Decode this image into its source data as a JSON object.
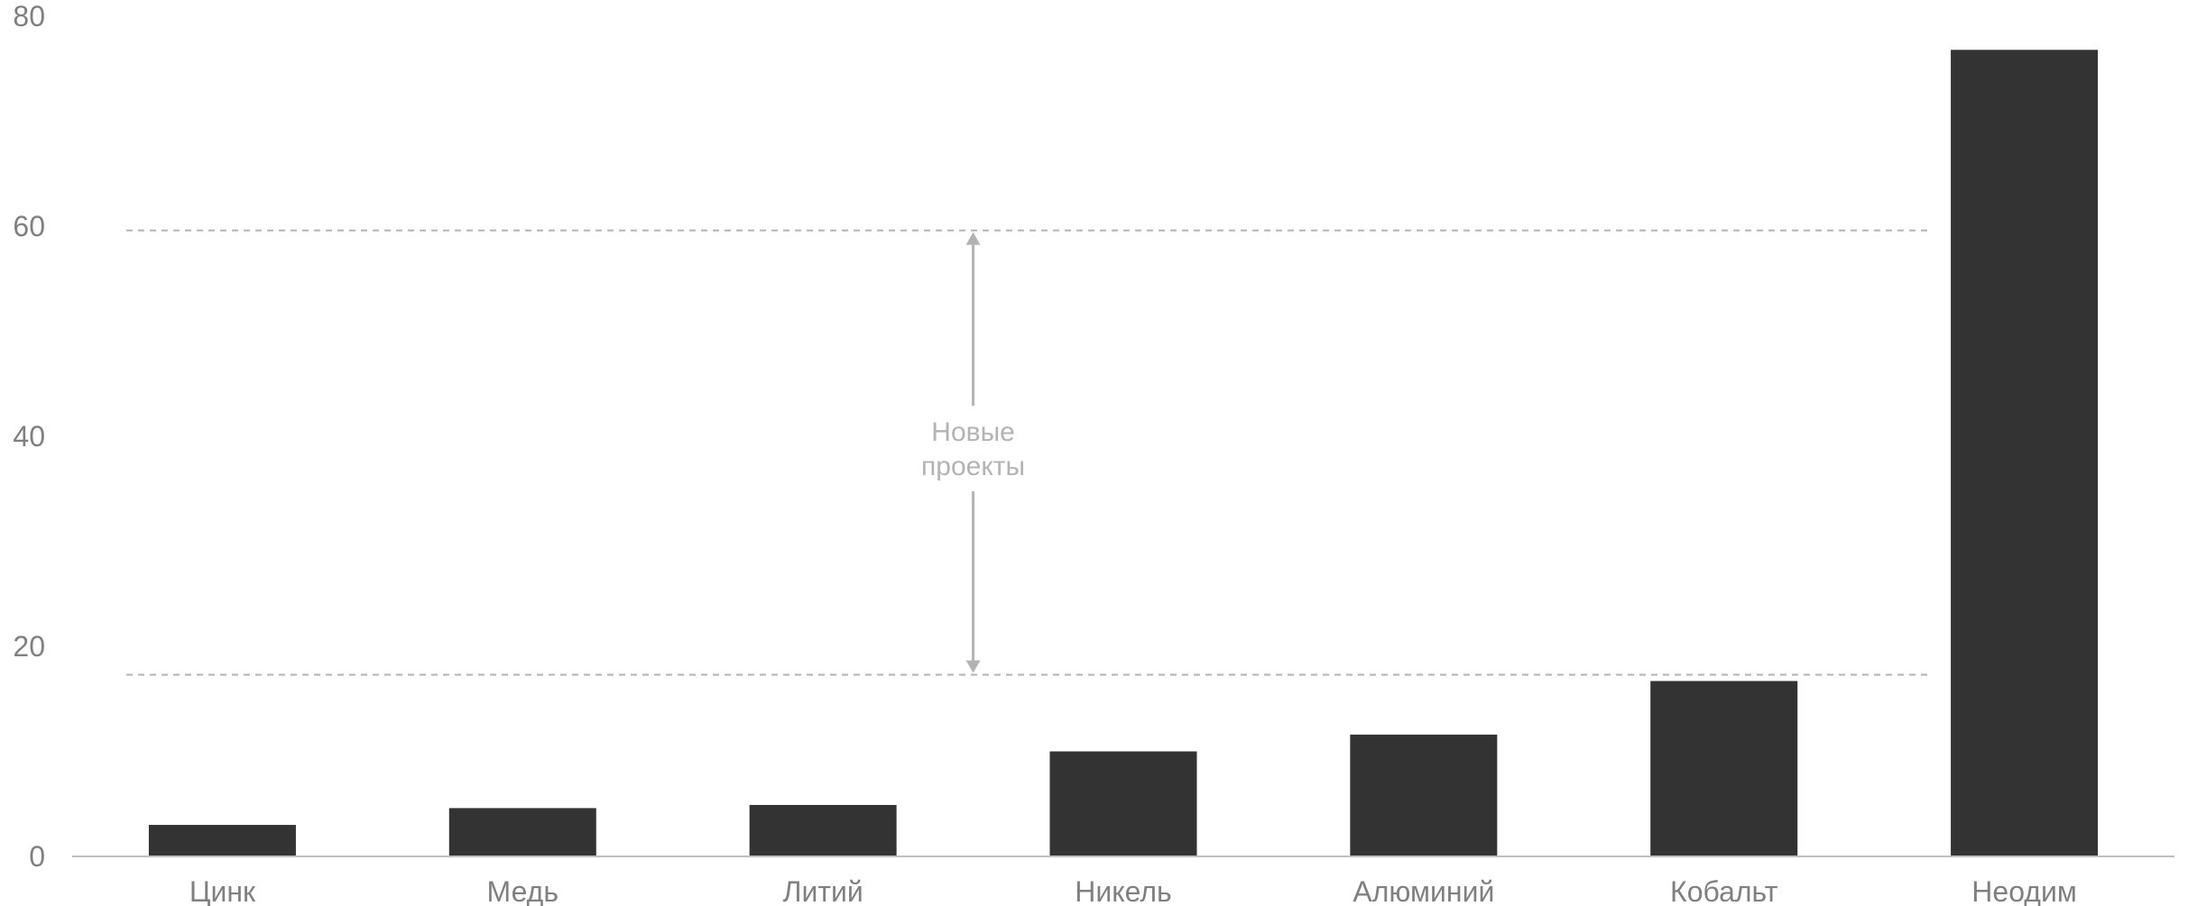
{
  "chart_data": {
    "type": "bar",
    "categories": [
      "Цинк",
      "Медь",
      "Литий",
      "Никель",
      "Алюминий",
      "Кобальт",
      "Неодим"
    ],
    "values": [
      3.0,
      4.6,
      4.9,
      10.0,
      11.6,
      16.7,
      76.8
    ],
    "title": "",
    "xlabel": "",
    "ylabel": "",
    "ylim": [
      0,
      80
    ],
    "yticks": [
      0,
      20,
      40,
      60,
      80
    ],
    "grid": false,
    "reference_lines": [
      17.3,
      59.6
    ],
    "annotation": {
      "lines": [
        "Новые",
        "проекты"
      ],
      "from": 17.3,
      "to": 59.6,
      "between_categories": [
        "Литий",
        "Никель"
      ]
    },
    "colors": {
      "bar": "#333333",
      "axis": "#bfbfbf",
      "reference_line": "#b3b3b3",
      "annotation": "#b3b3b3",
      "tick_text": "#808080"
    }
  }
}
